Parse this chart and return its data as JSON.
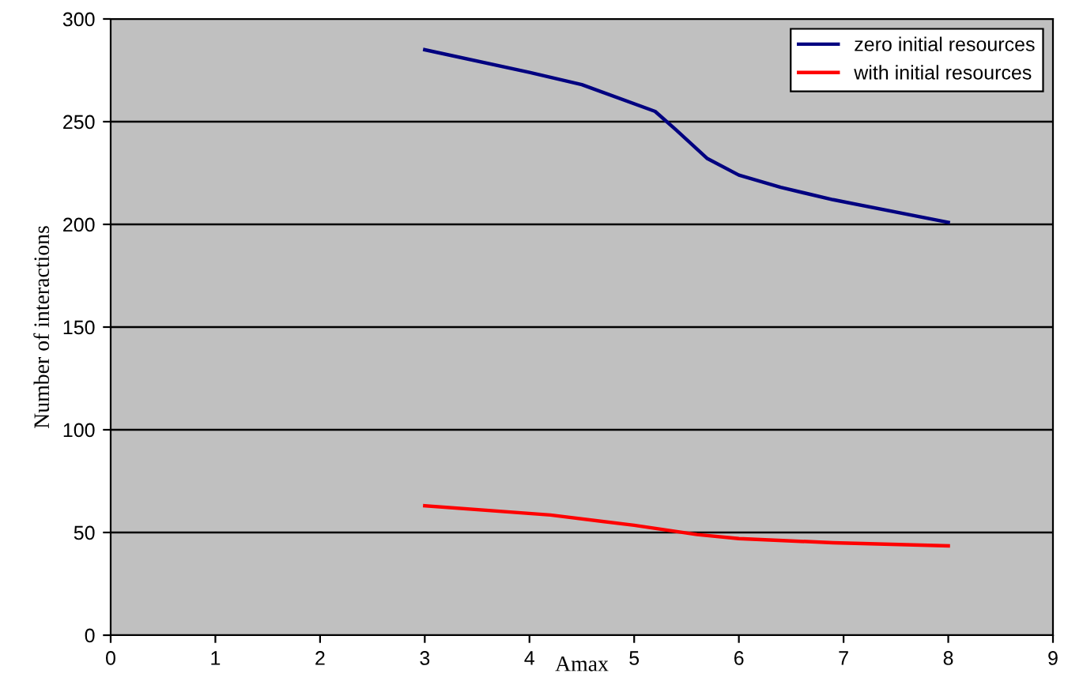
{
  "chart_data": {
    "type": "line",
    "xlabel": "Amax",
    "ylabel": "Number of interactions",
    "xlim": [
      0,
      9
    ],
    "xticks": [
      0,
      1,
      2,
      3,
      4,
      5,
      6,
      7,
      8,
      9
    ],
    "ylim": [
      0,
      300
    ],
    "yticks": [
      0,
      50,
      100,
      150,
      200,
      250,
      300
    ],
    "grid": "y",
    "legend": "top right",
    "marker": "none",
    "line_style": "solid",
    "series": [
      {
        "name": "zero initial resources",
        "color": "#000080",
        "x": [
          3,
          4,
          4.5,
          5.2,
          5.4,
          5.7,
          6,
          6.4,
          6.9,
          8
        ],
        "values": [
          285,
          274,
          268,
          255,
          246,
          232,
          224,
          218,
          212,
          201
        ]
      },
      {
        "name": "with initial resources",
        "color": "#ff0000",
        "x": [
          3,
          4.2,
          5,
          5.6,
          6,
          6.9,
          8
        ],
        "values": [
          63,
          58.5,
          53.5,
          49,
          47,
          45,
          43.5
        ]
      }
    ]
  }
}
